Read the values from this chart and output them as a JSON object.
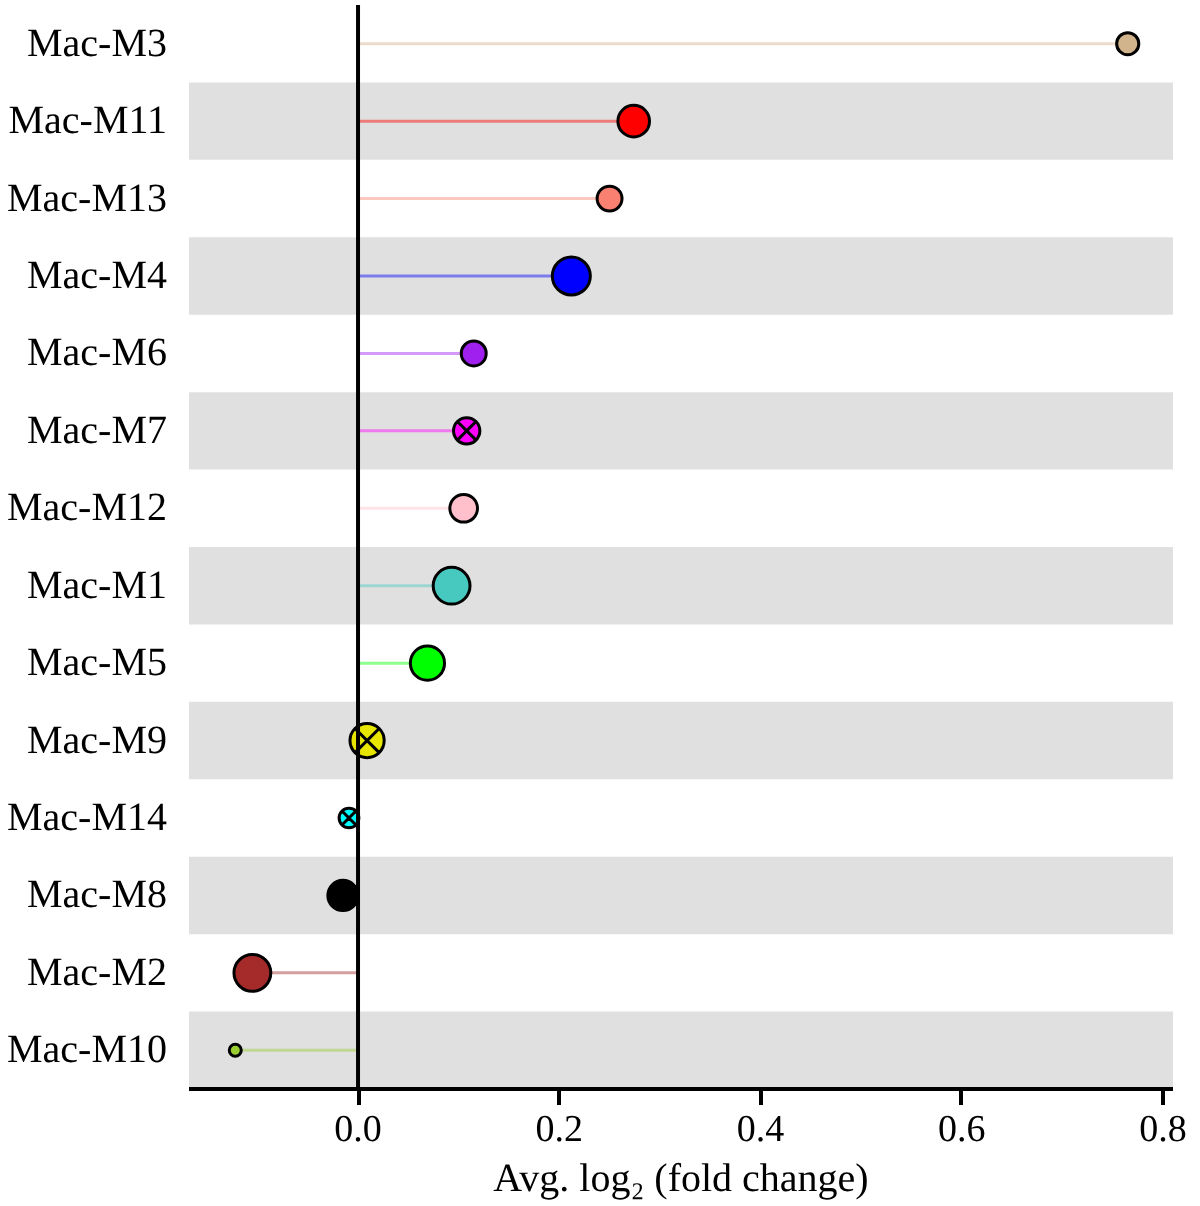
{
  "chart_data": {
    "type": "lollipop",
    "xlabel": "Avg. log₂ (fold change)",
    "categories": [
      "Mac-M3",
      "Mac-M11",
      "Mac-M13",
      "Mac-M4",
      "Mac-M6",
      "Mac-M7",
      "Mac-M12",
      "Mac-M1",
      "Mac-M5",
      "Mac-M9",
      "Mac-M14",
      "Mac-M8",
      "Mac-M2",
      "Mac-M10"
    ],
    "orientation": "horizontal",
    "series": [
      {
        "marker": "circle",
        "values": [
          0.765,
          0.274,
          0.25,
          0.212,
          0.115,
          null,
          0.105,
          0.093,
          0.069,
          null,
          null,
          -0.015,
          -0.105,
          -0.122
        ],
        "colors": [
          "#d2b48c",
          "#ff0000",
          "#fa8072",
          "#0000ff",
          "#a020f0",
          null,
          "#ffc0cb",
          "#48c9c0",
          "#00ff00",
          null,
          null,
          "#000000",
          "#a52a2a",
          "#9acd32"
        ],
        "sizes": [
          0.34,
          0.69,
          0.43,
          1,
          0.43,
          null,
          0.53,
          0.94,
          0.81,
          null,
          null,
          0.63,
          0.94,
          0.1
        ]
      },
      {
        "marker": "cross",
        "values": [
          null,
          null,
          null,
          null,
          null,
          0.108,
          null,
          null,
          null,
          0.009,
          -0.009,
          null,
          null,
          null
        ],
        "colors": [
          null,
          null,
          null,
          null,
          null,
          "#ff00ff",
          null,
          null,
          null,
          "#e6e600",
          "#00ffff",
          null,
          null,
          null
        ],
        "sizes": [
          null,
          null,
          null,
          null,
          null,
          0.48,
          null,
          null,
          null,
          0.81,
          0.27,
          null,
          null,
          null
        ]
      }
    ],
    "xlim": [
      -0.168,
      0.81
    ],
    "xticks": [
      {
        "value": 0,
        "label": "0.0"
      },
      {
        "value": 0.2,
        "label": "0.2"
      },
      {
        "value": 0.4,
        "label": "0.4"
      },
      {
        "value": 0.6,
        "label": "0.6"
      },
      {
        "value": 0.8,
        "label": "0.8"
      }
    ],
    "ref_lines": [
      {
        "axis": "x",
        "value": 0,
        "color": "#000000"
      }
    ],
    "grid": false
  }
}
